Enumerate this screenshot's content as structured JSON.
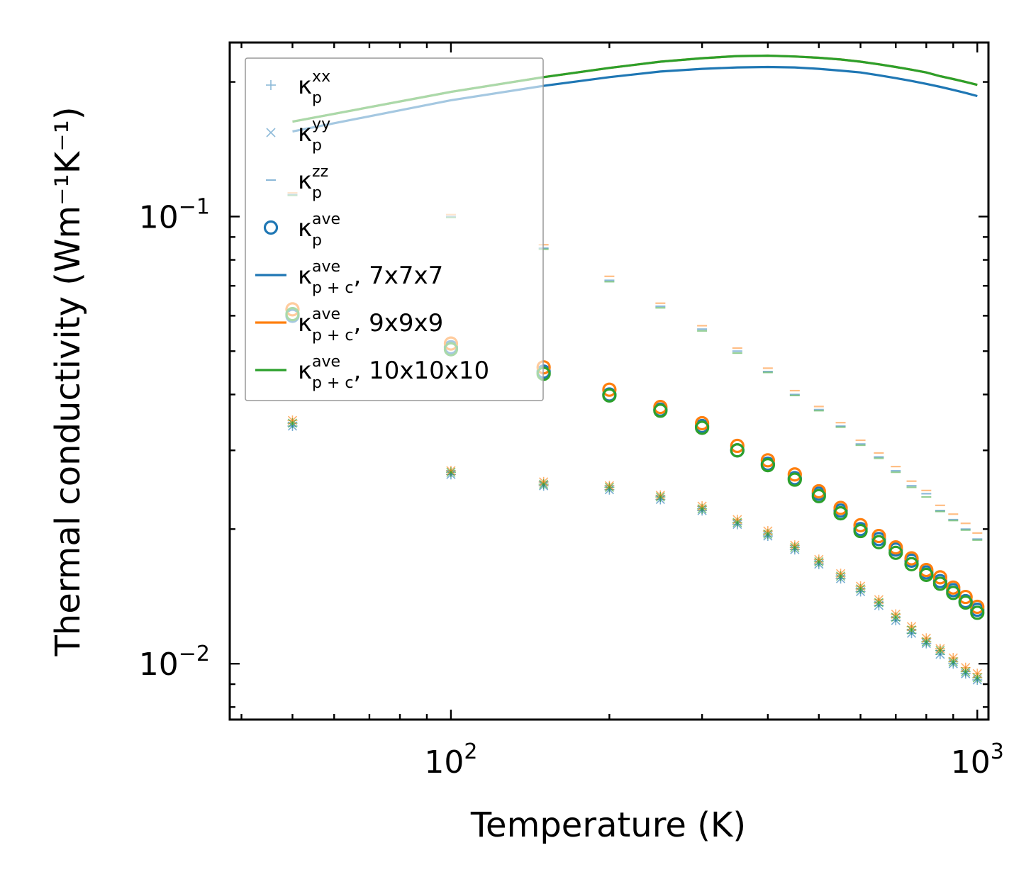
{
  "chart_data": {
    "type": "scatter",
    "title": "",
    "xlabel": "Temperature (K)",
    "ylabel": "Thermal conductivity (Wm⁻¹K⁻¹)",
    "xscale": "log",
    "yscale": "log",
    "xlim": [
      38,
      1050
    ],
    "ylim": [
      0.0075,
      0.245
    ],
    "x_ticks": [
      {
        "value": 100,
        "base": "10",
        "exp": "2"
      },
      {
        "value": 1000,
        "base": "10",
        "exp": "3"
      }
    ],
    "y_ticks": [
      {
        "value": 0.01,
        "base": "10",
        "exp": "−2"
      },
      {
        "value": 0.1,
        "base": "10",
        "exp": "−1"
      }
    ],
    "legend_position": "upper-left",
    "colors": {
      "c7": "#1f77b4",
      "c9": "#ff7f0e",
      "c10": "#2ca02c"
    },
    "x": [
      50,
      100,
      150,
      200,
      250,
      300,
      350,
      400,
      450,
      500,
      550,
      600,
      650,
      700,
      750,
      800,
      850,
      900,
      950,
      1000
    ],
    "series": [
      {
        "name": "κp_zz 7x7x7",
        "kind": "zz",
        "grid": "c7",
        "values": [
          0.112,
          0.1,
          0.085,
          0.072,
          0.063,
          0.056,
          0.05,
          0.045,
          0.04,
          0.037,
          0.034,
          0.031,
          0.029,
          0.027,
          0.025,
          0.024,
          0.022,
          0.021,
          0.02,
          0.019
        ]
      },
      {
        "name": "κp_zz 9x9x9",
        "kind": "zz",
        "grid": "c9",
        "values": [
          0.113,
          0.101,
          0.0865,
          0.0735,
          0.064,
          0.057,
          0.0508,
          0.0458,
          0.0408,
          0.0376,
          0.0346,
          0.0316,
          0.0296,
          0.0276,
          0.0256,
          0.0244,
          0.0226,
          0.0216,
          0.0206,
          0.0196
        ]
      },
      {
        "name": "κp_zz 10x10x10",
        "kind": "zz",
        "grid": "c10",
        "values": [
          0.1115,
          0.0995,
          0.0845,
          0.0715,
          0.0625,
          0.0555,
          0.0495,
          0.0448,
          0.0398,
          0.0368,
          0.0338,
          0.0308,
          0.0288,
          0.0268,
          0.0248,
          0.0236,
          0.0219,
          0.0209,
          0.0199,
          0.0189
        ]
      },
      {
        "name": "κp_xx 7x7x7",
        "kind": "xx",
        "grid": "c7",
        "values": [
          0.034,
          0.0265,
          0.025,
          0.0245,
          0.0233,
          0.022,
          0.0205,
          0.0193,
          0.018,
          0.0167,
          0.0155,
          0.0145,
          0.0135,
          0.0125,
          0.0117,
          0.0111,
          0.0105,
          0.01,
          0.0095,
          0.0092
        ]
      },
      {
        "name": "κp_xx 9x9x9",
        "kind": "xx",
        "grid": "c9",
        "values": [
          0.035,
          0.027,
          0.0255,
          0.025,
          0.0238,
          0.0225,
          0.021,
          0.0198,
          0.0184,
          0.0171,
          0.0159,
          0.0149,
          0.0139,
          0.0129,
          0.0121,
          0.0114,
          0.0108,
          0.0103,
          0.0098,
          0.0095
        ]
      },
      {
        "name": "κp_xx 10x10x10",
        "kind": "xx",
        "grid": "c10",
        "values": [
          0.0345,
          0.0268,
          0.0252,
          0.0248,
          0.0236,
          0.0222,
          0.0207,
          0.0195,
          0.0182,
          0.0169,
          0.0157,
          0.0147,
          0.0137,
          0.0127,
          0.0119,
          0.0112,
          0.0107,
          0.0101,
          0.0096,
          0.0093
        ]
      },
      {
        "name": "κp_yy 7x7x7",
        "kind": "yy",
        "grid": "c7",
        "values": [
          0.034,
          0.0265,
          0.025,
          0.0245,
          0.0233,
          0.022,
          0.0205,
          0.0193,
          0.018,
          0.0167,
          0.0155,
          0.0145,
          0.0135,
          0.0125,
          0.0117,
          0.0111,
          0.0105,
          0.01,
          0.0095,
          0.0092
        ]
      },
      {
        "name": "κp_yy 9x9x9",
        "kind": "yy",
        "grid": "c9",
        "values": [
          0.035,
          0.027,
          0.0255,
          0.025,
          0.0238,
          0.0225,
          0.021,
          0.0198,
          0.0184,
          0.0171,
          0.0159,
          0.0149,
          0.0139,
          0.0129,
          0.0121,
          0.0114,
          0.0108,
          0.0103,
          0.0098,
          0.0095
        ]
      },
      {
        "name": "κp_yy 10x10x10",
        "kind": "yy",
        "grid": "c10",
        "values": [
          0.0345,
          0.0268,
          0.0252,
          0.0248,
          0.0236,
          0.0222,
          0.0207,
          0.0195,
          0.0182,
          0.0169,
          0.0157,
          0.0147,
          0.0137,
          0.0127,
          0.0119,
          0.0112,
          0.0107,
          0.0101,
          0.0096,
          0.0093
        ]
      },
      {
        "name": "κp_ave 7x7x7",
        "kind": "ave",
        "grid": "c7",
        "values": [
          0.06,
          0.051,
          0.045,
          0.04,
          0.037,
          0.034,
          0.03,
          0.028,
          0.026,
          0.024,
          0.022,
          0.02,
          0.019,
          0.018,
          0.017,
          0.016,
          0.0153,
          0.0146,
          0.0138,
          0.0132
        ]
      },
      {
        "name": "κp_ave 9x9x9",
        "kind": "ave",
        "grid": "c9",
        "values": [
          0.062,
          0.052,
          0.046,
          0.041,
          0.0375,
          0.0345,
          0.0307,
          0.0285,
          0.0265,
          0.0243,
          0.0223,
          0.0204,
          0.0193,
          0.0182,
          0.0172,
          0.0162,
          0.0156,
          0.0148,
          0.0141,
          0.0134
        ]
      },
      {
        "name": "κp_ave 10x10x10",
        "kind": "ave",
        "grid": "c10",
        "values": [
          0.0605,
          0.0505,
          0.0445,
          0.0398,
          0.0368,
          0.0337,
          0.03,
          0.0278,
          0.0258,
          0.0237,
          0.0217,
          0.0198,
          0.0187,
          0.0177,
          0.0167,
          0.0158,
          0.0151,
          0.0144,
          0.0137,
          0.013
        ]
      }
    ],
    "lines": [
      {
        "name": "κp+c_ave 7x7x7",
        "grid": "c7",
        "values": [
          0.155,
          0.182,
          0.196,
          0.205,
          0.211,
          0.214,
          0.2155,
          0.216,
          0.2155,
          0.214,
          0.212,
          0.21,
          0.207,
          0.204,
          0.201,
          0.198,
          0.195,
          0.192,
          0.189,
          0.186
        ]
      },
      {
        "name": "κp+c_ave 9x9x9",
        "grid": "c9",
        "values": [
          0.163,
          0.19,
          0.205,
          0.215,
          0.222,
          0.226,
          0.2285,
          0.229,
          0.228,
          0.2265,
          0.2245,
          0.222,
          0.219,
          0.216,
          0.213,
          0.21,
          0.206,
          0.203,
          0.2,
          0.197
        ]
      },
      {
        "name": "κp+c_ave 10x10x10",
        "grid": "c10",
        "values": [
          0.163,
          0.19,
          0.205,
          0.215,
          0.222,
          0.226,
          0.2285,
          0.229,
          0.228,
          0.2265,
          0.2245,
          0.222,
          0.219,
          0.216,
          0.213,
          0.21,
          0.206,
          0.203,
          0.2,
          0.197
        ]
      }
    ],
    "legend": [
      {
        "marker": "plus",
        "alpha": 0.5,
        "color": "c7",
        "base": "κ",
        "sub": "p",
        "sup": "xx",
        "suffix": ""
      },
      {
        "marker": "x",
        "alpha": 0.5,
        "color": "c7",
        "base": "κ",
        "sub": "p",
        "sup": "yy",
        "suffix": ""
      },
      {
        "marker": "dash",
        "alpha": 0.5,
        "color": "c7",
        "base": "κ",
        "sub": "p",
        "sup": "zz",
        "suffix": ""
      },
      {
        "marker": "circle",
        "alpha": 1,
        "color": "c7",
        "base": "κ",
        "sub": "p",
        "sup": "ave",
        "suffix": ""
      },
      {
        "marker": "line",
        "alpha": 1,
        "color": "c7",
        "base": "κ",
        "sub": "p + c",
        "sup": "ave",
        "suffix": ", 7x7x7"
      },
      {
        "marker": "line",
        "alpha": 1,
        "color": "c9",
        "base": "κ",
        "sub": "p + c",
        "sup": "ave",
        "suffix": ", 9x9x9"
      },
      {
        "marker": "line",
        "alpha": 1,
        "color": "c10",
        "base": "κ",
        "sub": "p + c",
        "sup": "ave",
        "suffix": ", 10x10x10"
      }
    ]
  }
}
